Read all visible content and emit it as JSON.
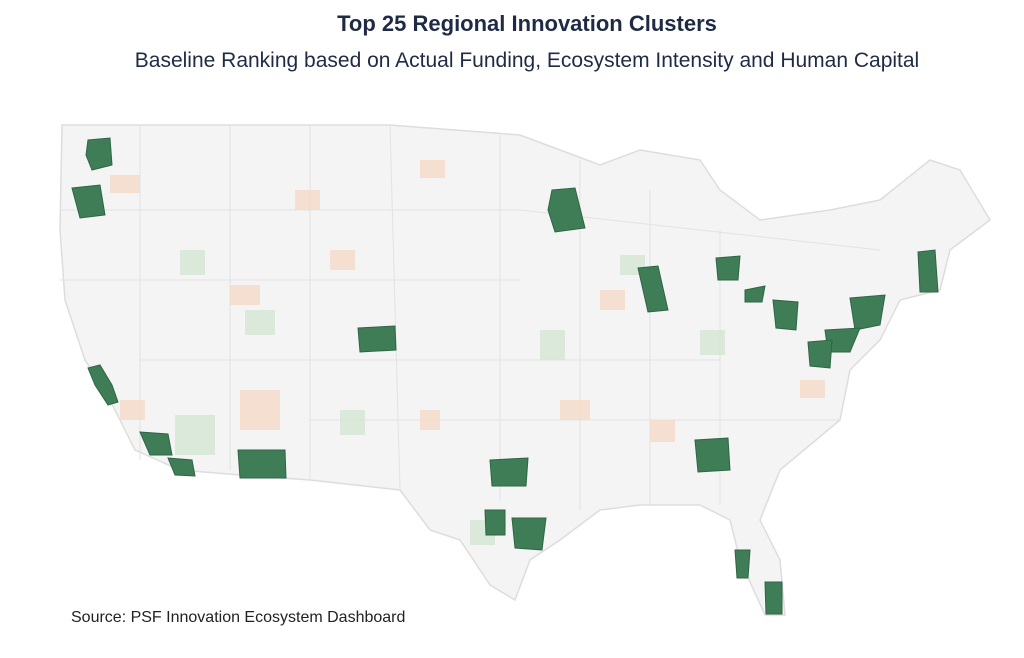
{
  "header": {
    "title": "Top 25 Regional Innovation Clusters",
    "subtitle": "Baseline Ranking based on Actual Funding, Ecosystem Intensity and Human Capital"
  },
  "footer": {
    "source": "Source: PSF Innovation Ecosystem Dashboard"
  }
}
